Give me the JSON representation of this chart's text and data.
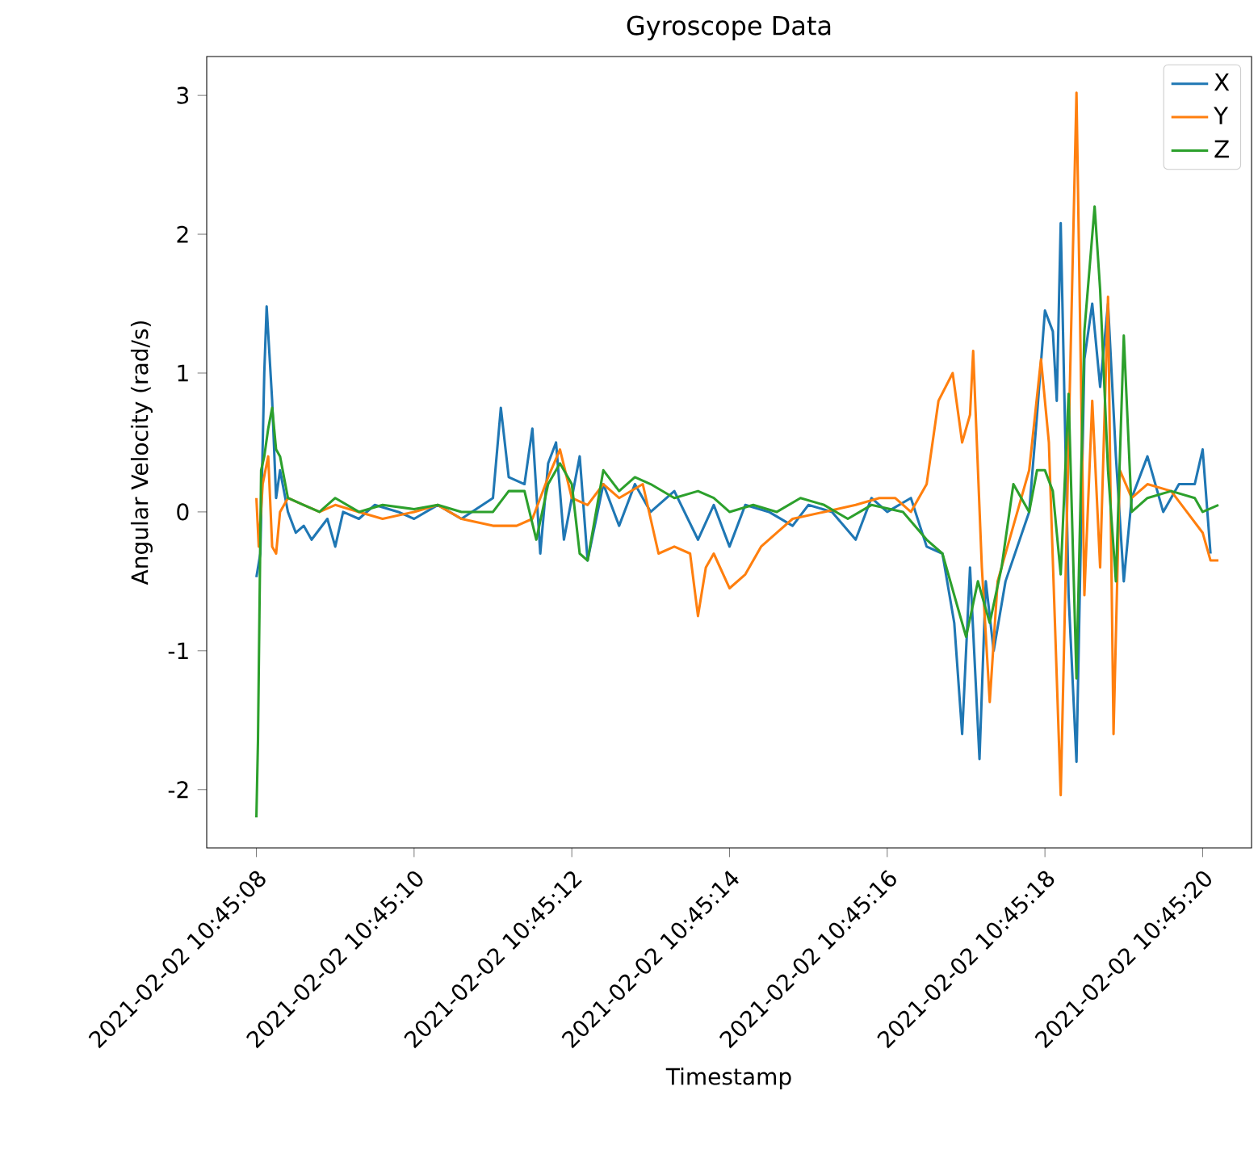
{
  "chart_data": {
    "type": "line",
    "title": "Gyroscope Data",
    "xlabel": "Timestamp",
    "ylabel": "Angular Velocity (rad/s)",
    "xlim": [
      "2021-02-02T10:45:07.37",
      "2021-02-02T10:45:20.62"
    ],
    "ylim": [
      -2.42,
      3.28
    ],
    "xticks": [
      {
        "value": "2021-02-02T10:45:08",
        "label": "2021-02-02 10:45:08"
      },
      {
        "value": "2021-02-02T10:45:10",
        "label": "2021-02-02 10:45:10"
      },
      {
        "value": "2021-02-02T10:45:12",
        "label": "2021-02-02 10:45:12"
      },
      {
        "value": "2021-02-02T10:45:14",
        "label": "2021-02-02 10:45:14"
      },
      {
        "value": "2021-02-02T10:45:16",
        "label": "2021-02-02 10:45:16"
      },
      {
        "value": "2021-02-02T10:45:18",
        "label": "2021-02-02 10:45:18"
      },
      {
        "value": "2021-02-02T10:45:20",
        "label": "2021-02-02 10:45:20"
      }
    ],
    "yticks": [
      -2,
      -1,
      0,
      1,
      2,
      3
    ],
    "legend": "top right",
    "grid": false,
    "marker": "none",
    "line_style": "solid",
    "series": [
      {
        "name": "X",
        "color": "#1f77b4",
        "x": [
          "2021-02-02T10:45:08.00",
          "2021-02-02T10:45:08.05",
          "2021-02-02T10:45:08.10",
          "2021-02-02T10:45:08.13",
          "2021-02-02T10:45:08.20",
          "2021-02-02T10:45:08.25",
          "2021-02-02T10:45:08.30",
          "2021-02-02T10:45:08.40",
          "2021-02-02T10:45:08.50",
          "2021-02-02T10:45:08.60",
          "2021-02-02T10:45:08.70",
          "2021-02-02T10:45:08.90",
          "2021-02-02T10:45:09.00",
          "2021-02-02T10:45:09.10",
          "2021-02-02T10:45:09.30",
          "2021-02-02T10:45:09.50",
          "2021-02-02T10:45:09.80",
          "2021-02-02T10:45:10.00",
          "2021-02-02T10:45:10.30",
          "2021-02-02T10:45:10.60",
          "2021-02-02T10:45:11.00",
          "2021-02-02T10:45:11.10",
          "2021-02-02T10:45:11.20",
          "2021-02-02T10:45:11.40",
          "2021-02-02T10:45:11.50",
          "2021-02-02T10:45:11.60",
          "2021-02-02T10:45:11.70",
          "2021-02-02T10:45:11.80",
          "2021-02-02T10:45:11.90",
          "2021-02-02T10:45:12.10",
          "2021-02-02T10:45:12.20",
          "2021-02-02T10:45:12.40",
          "2021-02-02T10:45:12.60",
          "2021-02-02T10:45:12.80",
          "2021-02-02T10:45:13.00",
          "2021-02-02T10:45:13.30",
          "2021-02-02T10:45:13.60",
          "2021-02-02T10:45:13.80",
          "2021-02-02T10:45:14.00",
          "2021-02-02T10:45:14.20",
          "2021-02-02T10:45:14.50",
          "2021-02-02T10:45:14.80",
          "2021-02-02T10:45:15.00",
          "2021-02-02T10:45:15.30",
          "2021-02-02T10:45:15.60",
          "2021-02-02T10:45:15.80",
          "2021-02-02T10:45:16.00",
          "2021-02-02T10:45:16.30",
          "2021-02-02T10:45:16.50",
          "2021-02-02T10:45:16.70",
          "2021-02-02T10:45:16.85",
          "2021-02-02T10:45:16.95",
          "2021-02-02T10:45:17.05",
          "2021-02-02T10:45:17.17",
          "2021-02-02T10:45:17.25",
          "2021-02-02T10:45:17.35",
          "2021-02-02T10:45:17.50",
          "2021-02-02T10:45:17.80",
          "2021-02-02T10:45:17.90",
          "2021-02-02T10:45:18.00",
          "2021-02-02T10:45:18.10",
          "2021-02-02T10:45:18.15",
          "2021-02-02T10:45:18.20",
          "2021-02-02T10:45:18.30",
          "2021-02-02T10:45:18.40",
          "2021-02-02T10:45:18.50",
          "2021-02-02T10:45:18.60",
          "2021-02-02T10:45:18.70",
          "2021-02-02T10:45:18.80",
          "2021-02-02T10:45:18.90",
          "2021-02-02T10:45:19.00",
          "2021-02-02T10:45:19.10",
          "2021-02-02T10:45:19.30",
          "2021-02-02T10:45:19.50",
          "2021-02-02T10:45:19.70",
          "2021-02-02T10:45:19.90",
          "2021-02-02T10:45:20.00",
          "2021-02-02T10:45:20.10"
        ],
        "values": [
          -0.47,
          -0.3,
          1.0,
          1.48,
          0.8,
          0.1,
          0.3,
          0.0,
          -0.15,
          -0.1,
          -0.2,
          -0.05,
          -0.25,
          0.0,
          -0.05,
          0.05,
          0.0,
          -0.05,
          0.05,
          -0.05,
          0.1,
          0.75,
          0.25,
          0.2,
          0.6,
          -0.3,
          0.35,
          0.5,
          -0.2,
          0.4,
          -0.35,
          0.2,
          -0.1,
          0.2,
          0.0,
          0.15,
          -0.2,
          0.05,
          -0.25,
          0.05,
          0.0,
          -0.1,
          0.05,
          0.0,
          -0.2,
          0.1,
          0.0,
          0.1,
          -0.25,
          -0.3,
          -0.8,
          -1.6,
          -0.4,
          -1.78,
          -0.5,
          -1.0,
          -0.5,
          0.0,
          0.7,
          1.45,
          1.3,
          0.8,
          2.08,
          -0.6,
          -1.8,
          1.1,
          1.5,
          0.9,
          1.5,
          0.4,
          -0.5,
          0.1,
          0.4,
          0.0,
          0.2,
          0.2,
          0.45,
          -0.3
        ]
      },
      {
        "name": "Y",
        "color": "#ff7f0e",
        "x": [
          "2021-02-02T10:45:08.00",
          "2021-02-02T10:45:08.03",
          "2021-02-02T10:45:08.08",
          "2021-02-02T10:45:08.15",
          "2021-02-02T10:45:08.20",
          "2021-02-02T10:45:08.25",
          "2021-02-02T10:45:08.30",
          "2021-02-02T10:45:08.40",
          "2021-02-02T10:45:08.60",
          "2021-02-02T10:45:08.80",
          "2021-02-02T10:45:09.00",
          "2021-02-02T10:45:09.30",
          "2021-02-02T10:45:09.60",
          "2021-02-02T10:45:10.00",
          "2021-02-02T10:45:10.30",
          "2021-02-02T10:45:10.60",
          "2021-02-02T10:45:11.00",
          "2021-02-02T10:45:11.30",
          "2021-02-02T10:45:11.50",
          "2021-02-02T10:45:11.70",
          "2021-02-02T10:45:11.85",
          "2021-02-02T10:45:12.00",
          "2021-02-02T10:45:12.20",
          "2021-02-02T10:45:12.40",
          "2021-02-02T10:45:12.60",
          "2021-02-02T10:45:12.90",
          "2021-02-02T10:45:13.10",
          "2021-02-02T10:45:13.30",
          "2021-02-02T10:45:13.50",
          "2021-02-02T10:45:13.60",
          "2021-02-02T10:45:13.70",
          "2021-02-02T10:45:13.80",
          "2021-02-02T10:45:14.00",
          "2021-02-02T10:45:14.20",
          "2021-02-02T10:45:14.40",
          "2021-02-02T10:45:14.60",
          "2021-02-02T10:45:14.80",
          "2021-02-02T10:45:15.20",
          "2021-02-02T10:45:15.60",
          "2021-02-02T10:45:15.90",
          "2021-02-02T10:45:16.10",
          "2021-02-02T10:45:16.30",
          "2021-02-02T10:45:16.50",
          "2021-02-02T10:45:16.65",
          "2021-02-02T10:45:16.83",
          "2021-02-02T10:45:16.95",
          "2021-02-02T10:45:17.05",
          "2021-02-02T10:45:17.09",
          "2021-02-02T10:45:17.20",
          "2021-02-02T10:45:17.30",
          "2021-02-02T10:45:17.40",
          "2021-02-02T10:45:17.60",
          "2021-02-02T10:45:17.80",
          "2021-02-02T10:45:17.95",
          "2021-02-02T10:45:18.05",
          "2021-02-02T10:45:18.20",
          "2021-02-02T10:45:18.30",
          "2021-02-02T10:45:18.40",
          "2021-02-02T10:45:18.50",
          "2021-02-02T10:45:18.60",
          "2021-02-02T10:45:18.70",
          "2021-02-02T10:45:18.80",
          "2021-02-02T10:45:18.87",
          "2021-02-02T10:45:18.95",
          "2021-02-02T10:45:19.10",
          "2021-02-02T10:45:19.30",
          "2021-02-02T10:45:19.60",
          "2021-02-02T10:45:19.80",
          "2021-02-02T10:45:20.00",
          "2021-02-02T10:45:20.10",
          "2021-02-02T10:45:20.20"
        ],
        "values": [
          0.1,
          -0.25,
          0.2,
          0.4,
          -0.25,
          -0.3,
          0.0,
          0.1,
          0.05,
          0.0,
          0.05,
          0.0,
          -0.05,
          0.0,
          0.05,
          -0.05,
          -0.1,
          -0.1,
          -0.05,
          0.25,
          0.45,
          0.1,
          0.05,
          0.2,
          0.1,
          0.2,
          -0.3,
          -0.25,
          -0.3,
          -0.75,
          -0.4,
          -0.3,
          -0.55,
          -0.45,
          -0.25,
          -0.15,
          -0.05,
          0.0,
          0.05,
          0.1,
          0.1,
          0.0,
          0.2,
          0.8,
          1.0,
          0.5,
          0.7,
          1.16,
          -0.4,
          -1.37,
          -0.5,
          -0.1,
          0.3,
          1.1,
          0.5,
          -2.04,
          0.5,
          3.02,
          -0.6,
          0.8,
          -0.4,
          1.55,
          -1.6,
          0.3,
          0.1,
          0.2,
          0.15,
          0.0,
          -0.15,
          -0.35,
          -0.35
        ]
      },
      {
        "name": "Z",
        "color": "#2ca02c",
        "x": [
          "2021-02-02T10:45:08.00",
          "2021-02-02T10:45:08.02",
          "2021-02-02T10:45:08.06",
          "2021-02-02T10:45:08.10",
          "2021-02-02T10:45:08.15",
          "2021-02-02T10:45:08.20",
          "2021-02-02T10:45:08.25",
          "2021-02-02T10:45:08.30",
          "2021-02-02T10:45:08.40",
          "2021-02-02T10:45:08.60",
          "2021-02-02T10:45:08.80",
          "2021-02-02T10:45:09.00",
          "2021-02-02T10:45:09.30",
          "2021-02-02T10:45:09.60",
          "2021-02-02T10:45:10.00",
          "2021-02-02T10:45:10.30",
          "2021-02-02T10:45:10.60",
          "2021-02-02T10:45:11.00",
          "2021-02-02T10:45:11.20",
          "2021-02-02T10:45:11.40",
          "2021-02-02T10:45:11.55",
          "2021-02-02T10:45:11.70",
          "2021-02-02T10:45:11.85",
          "2021-02-02T10:45:12.00",
          "2021-02-02T10:45:12.10",
          "2021-02-02T10:45:12.20",
          "2021-02-02T10:45:12.40",
          "2021-02-02T10:45:12.60",
          "2021-02-02T10:45:12.80",
          "2021-02-02T10:45:13.00",
          "2021-02-02T10:45:13.30",
          "2021-02-02T10:45:13.60",
          "2021-02-02T10:45:13.80",
          "2021-02-02T10:45:14.00",
          "2021-02-02T10:45:14.30",
          "2021-02-02T10:45:14.60",
          "2021-02-02T10:45:14.90",
          "2021-02-02T10:45:15.20",
          "2021-02-02T10:45:15.50",
          "2021-02-02T10:45:15.80",
          "2021-02-02T10:45:16.20",
          "2021-02-02T10:45:16.50",
          "2021-02-02T10:45:16.70",
          "2021-02-02T10:45:16.85",
          "2021-02-02T10:45:17.00",
          "2021-02-02T10:45:17.15",
          "2021-02-02T10:45:17.30",
          "2021-02-02T10:45:17.45",
          "2021-02-02T10:45:17.60",
          "2021-02-02T10:45:17.80",
          "2021-02-02T10:45:17.90",
          "2021-02-02T10:45:18.00",
          "2021-02-02T10:45:18.10",
          "2021-02-02T10:45:18.20",
          "2021-02-02T10:45:18.30",
          "2021-02-02T10:45:18.40",
          "2021-02-02T10:45:18.50",
          "2021-02-02T10:45:18.63",
          "2021-02-02T10:45:18.70",
          "2021-02-02T10:45:18.80",
          "2021-02-02T10:45:18.90",
          "2021-02-02T10:45:19.00",
          "2021-02-02T10:45:19.10",
          "2021-02-02T10:45:19.30",
          "2021-02-02T10:45:19.60",
          "2021-02-02T10:45:19.90",
          "2021-02-02T10:45:20.00",
          "2021-02-02T10:45:20.20"
        ],
        "values": [
          -2.2,
          -1.65,
          0.3,
          0.4,
          0.6,
          0.75,
          0.45,
          0.4,
          0.1,
          0.05,
          0.0,
          0.1,
          0.0,
          0.05,
          0.02,
          0.05,
          0.0,
          0.0,
          0.15,
          0.15,
          -0.2,
          0.2,
          0.35,
          0.2,
          -0.3,
          -0.35,
          0.3,
          0.15,
          0.25,
          0.2,
          0.1,
          0.15,
          0.1,
          0.0,
          0.05,
          0.0,
          0.1,
          0.05,
          -0.05,
          0.05,
          0.0,
          -0.2,
          -0.3,
          -0.6,
          -0.9,
          -0.5,
          -0.8,
          -0.4,
          0.2,
          0.0,
          0.3,
          0.3,
          0.15,
          -0.45,
          0.85,
          -1.2,
          1.3,
          2.2,
          1.6,
          0.3,
          -0.5,
          1.27,
          0.0,
          0.1,
          0.15,
          0.1,
          0.0,
          0.05
        ]
      }
    ]
  }
}
